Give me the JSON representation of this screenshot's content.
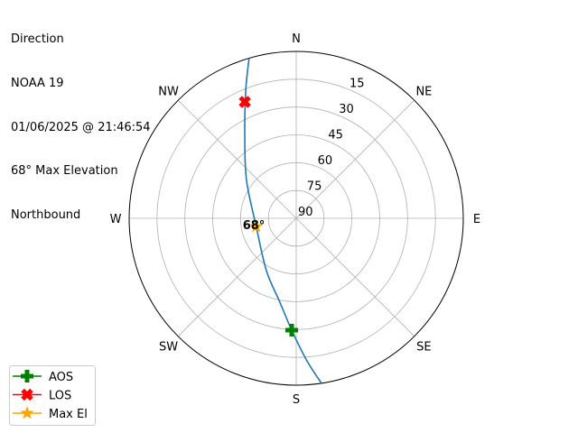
{
  "title_lines": [
    "Direction",
    "NOAA 19",
    "01/06/2025 @ 21:46:54",
    "68° Max Elevation",
    "Northbound"
  ],
  "chart_data": {
    "type": "polar-line",
    "theta_direction": "clockwise",
    "theta_zero": "north",
    "direction_labels": [
      {
        "label": "N",
        "az": 0
      },
      {
        "label": "NE",
        "az": 45
      },
      {
        "label": "E",
        "az": 90
      },
      {
        "label": "SE",
        "az": 135
      },
      {
        "label": "S",
        "az": 180
      },
      {
        "label": "SW",
        "az": 225
      },
      {
        "label": "W",
        "az": 270
      },
      {
        "label": "NW",
        "az": 315
      }
    ],
    "radial_ticks": [
      "15",
      "30",
      "45",
      "60",
      "75",
      "90"
    ],
    "radial_values": [
      15,
      30,
      45,
      60,
      75,
      90
    ],
    "radial_axis": "elevation (90 at center, 0 at edge)",
    "grid": true,
    "track": {
      "color": "#1f77b4",
      "az": [
        343.6,
        338.5,
        328.2,
        307.4,
        258.4,
        209.6,
        191.0,
        182.3,
        175.7,
        171.3
      ],
      "el": [
        0,
        15.8,
        37.4,
        56.3,
        68.0,
        57.5,
        43.9,
        29.6,
        12.9,
        0
      ]
    },
    "markers": [
      {
        "name": "AOS",
        "az": 182.3,
        "el": 29.6,
        "color": "#008000",
        "symbol": "plus"
      },
      {
        "name": "LOS",
        "az": 336.2,
        "el": 21.4,
        "color": "#ff0000",
        "symbol": "x"
      },
      {
        "name": "Max El",
        "az": 258.4,
        "el": 68.0,
        "color": "#ffa500",
        "symbol": "star"
      }
    ],
    "annotation": {
      "text": "68°",
      "az": 258.4,
      "el": 68.0
    },
    "legend": {
      "placement": "lower-left",
      "entries": [
        "AOS",
        "LOS",
        "Max El"
      ]
    }
  }
}
